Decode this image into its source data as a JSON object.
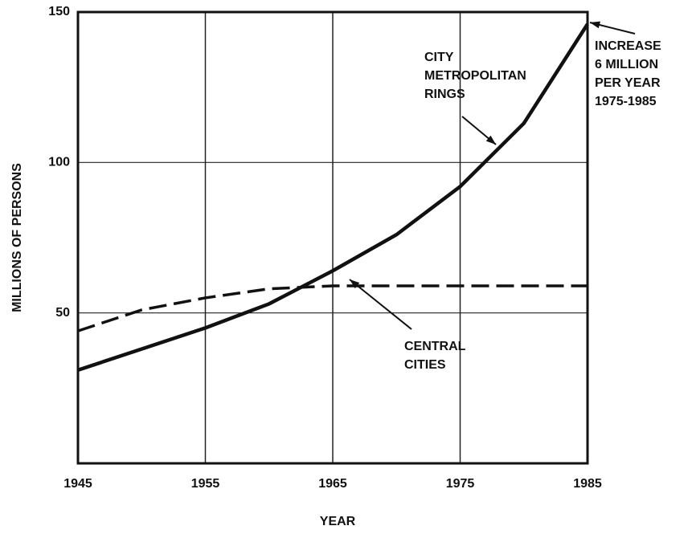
{
  "chart_data": {
    "type": "line",
    "xlabel": "YEAR",
    "ylabel": "MILLIONS OF PERSONS",
    "x": [
      1945,
      1950,
      1955,
      1960,
      1965,
      1970,
      1975,
      1980,
      1985
    ],
    "series": [
      {
        "name": "CITY METROPOLITAN RINGS",
        "color": "#111111",
        "style": "solid",
        "values": [
          31,
          38,
          45,
          53,
          64,
          76,
          92,
          113,
          146
        ]
      },
      {
        "name": "CENTRAL CITIES",
        "color": "#111111",
        "style": "dashed",
        "values": [
          44,
          51,
          55,
          58,
          59,
          59,
          59,
          59,
          59
        ]
      }
    ],
    "annotations": [
      {
        "lines": [
          "INCREASE",
          "6 MILLION",
          "PER YEAR",
          "1975-1985"
        ]
      }
    ],
    "xlim": [
      1945,
      1985
    ],
    "xticks": [
      1945,
      1955,
      1965,
      1975,
      1985
    ],
    "ylim": [
      0,
      150
    ],
    "yticks": [
      50,
      100,
      150
    ],
    "grid": true
  }
}
